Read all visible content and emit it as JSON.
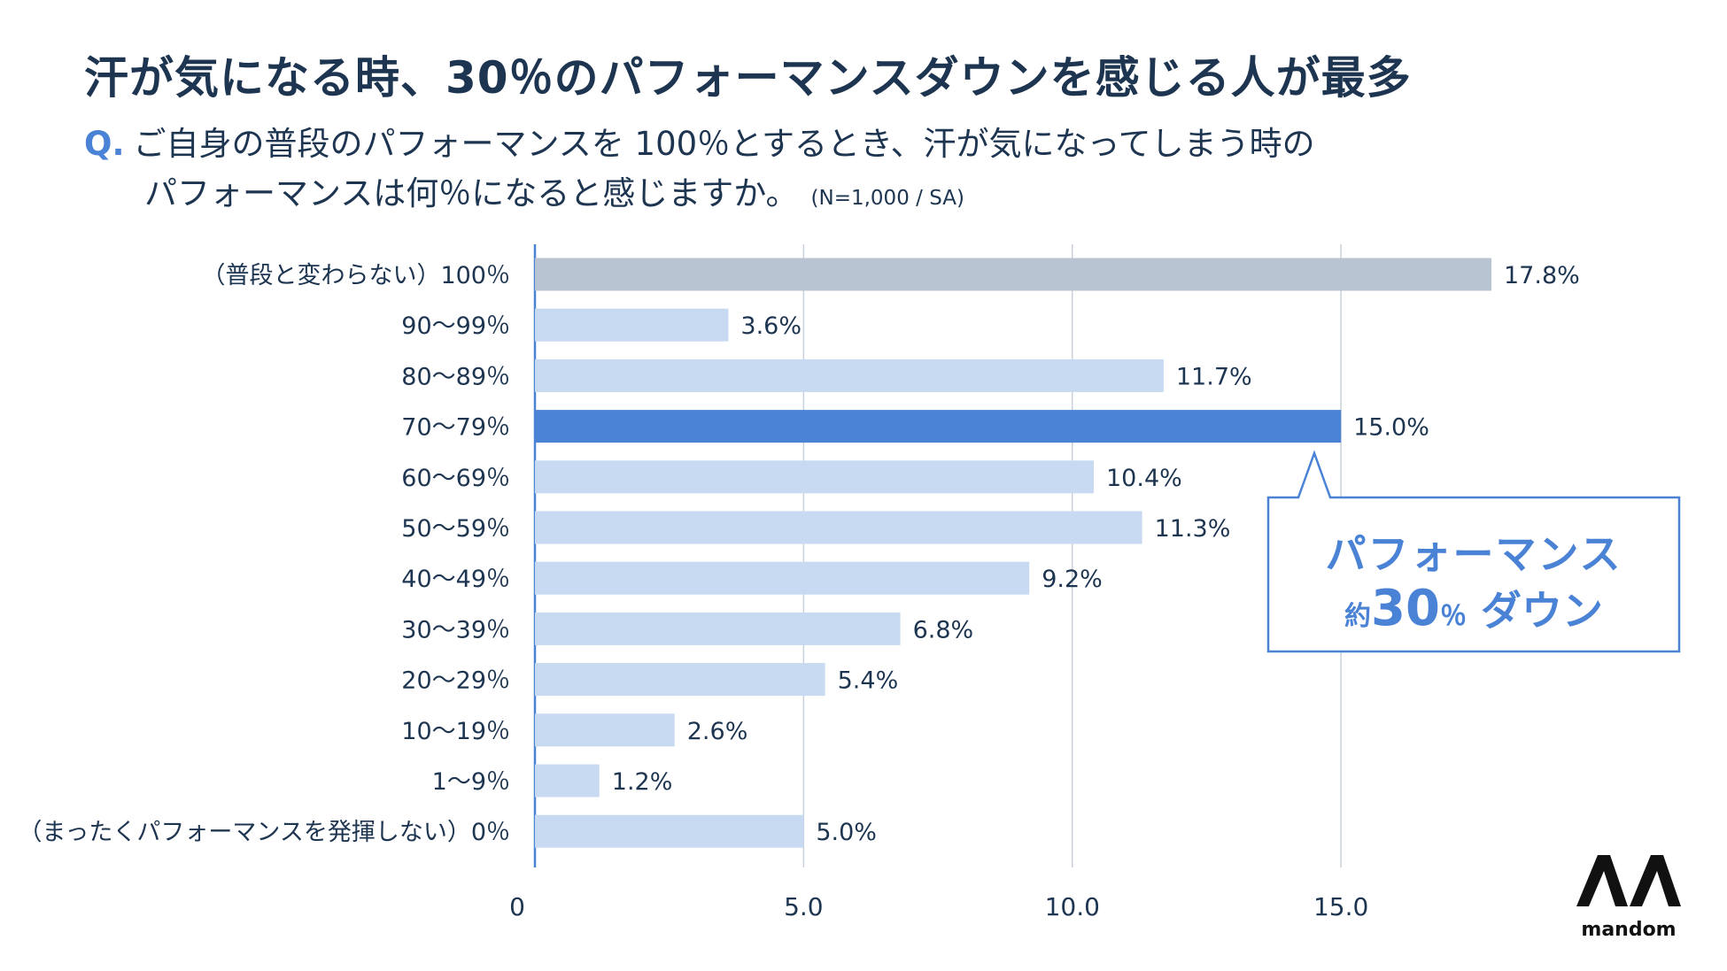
{
  "header": {
    "title": "汗が気になる時、30％のパフォーマンスダウンを感じる人が最多"
  },
  "question": {
    "prefix": "Q.",
    "line1": "ご自身の普段のパフォーマンスを 100％とするとき、汗が気になってしまう時の",
    "line2": "パフォーマンスは何％になると感じますか。",
    "note": "(N=1,000 / SA)"
  },
  "callout": {
    "line1": "パフォーマンス",
    "line2_prefix": "約",
    "line2_value": "30",
    "line2_unit": "％",
    "line2_suffix": " ダウン"
  },
  "logo": {
    "mark": "ʌʌ",
    "text": "mandom"
  },
  "colors": {
    "bar_default": "#c7daf1",
    "bar_baseline": "#b8c4d2",
    "bar_highlight": "#4a82d5",
    "text": "#1d3550",
    "accent": "#4a82d5"
  },
  "chart_data": {
    "type": "bar",
    "orientation": "horizontal",
    "categories": [
      "（普段と変わらない）100％",
      "90〜99％",
      "80〜89％",
      "70〜79％",
      "60〜69％",
      "50〜59％",
      "40〜49％",
      "30〜39％",
      "20〜29％",
      "10〜19％",
      "1〜9％",
      "（まったくパフォーマンスを発揮しない）0％"
    ],
    "values": [
      17.8,
      3.6,
      11.7,
      15.0,
      10.4,
      11.3,
      9.2,
      6.8,
      5.4,
      2.6,
      1.2,
      5.0
    ],
    "value_labels": [
      "17.8%",
      "3.6%",
      "11.7%",
      "15.0%",
      "10.4%",
      "11.3%",
      "9.2%",
      "6.8%",
      "5.4%",
      "2.6%",
      "1.2%",
      "5.0%"
    ],
    "highlight_index": 3,
    "baseline_index": 0,
    "xlim": [
      0,
      17.8
    ],
    "xticks": [
      0,
      5.0,
      10.0,
      15.0
    ],
    "xtick_labels": [
      "0",
      "5.0",
      "10.0",
      "15.0"
    ],
    "grid": true,
    "unit": "%"
  }
}
